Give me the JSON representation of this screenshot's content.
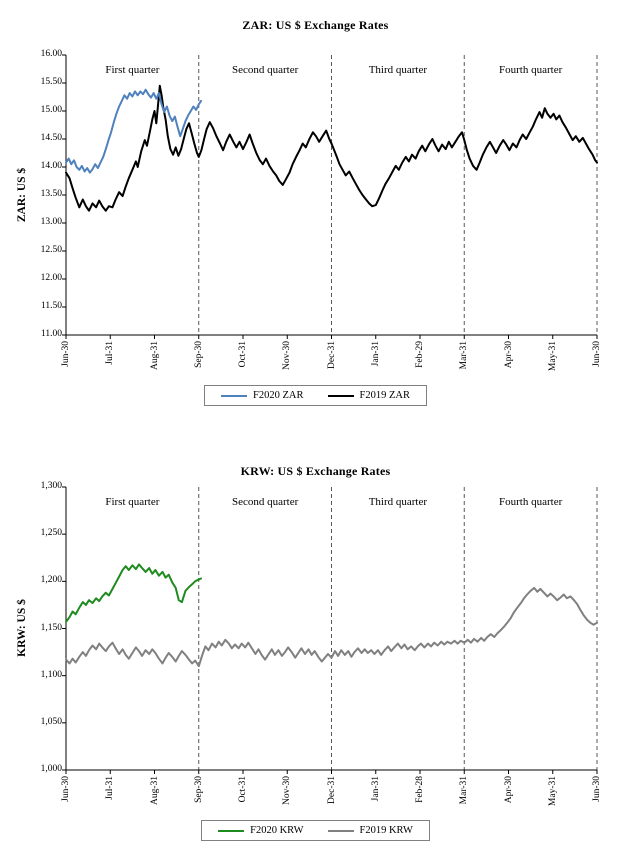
{
  "chart_data": [
    {
      "type": "line",
      "title": "ZAR: US $ Exchange Rates",
      "ylabel": "ZAR: US $",
      "xlabel": "",
      "ylim": [
        11.0,
        16.0
      ],
      "x_range": [
        0,
        12
      ],
      "grid": false,
      "legend_position": "bottom",
      "y_tick_labels": [
        "16.00",
        "15.50",
        "15.00",
        "14.50",
        "14.00",
        "13.50",
        "13.00",
        "12.50",
        "12.00",
        "11.50",
        "11.00"
      ],
      "x_tick_labels": [
        "Jun-30",
        "Jul-31",
        "Aug-31",
        "Sep-30",
        "Oct-31",
        "Nov-30",
        "Dec-31",
        "Jan-31",
        "Feb-29",
        "Mar-31",
        "Apr-30",
        "May-31",
        "Jun-30"
      ],
      "annotations": [
        "First quarter",
        "Second quarter",
        "Third quarter",
        "Fourth quarter"
      ],
      "quarter_separators_pct": [
        25,
        50,
        75,
        100
      ],
      "series": [
        {
          "name": "F2020 ZAR",
          "color": "#4f81bd",
          "x": [
            0,
            0.06,
            0.12,
            0.18,
            0.24,
            0.3,
            0.36,
            0.42,
            0.48,
            0.54,
            0.6,
            0.66,
            0.72,
            0.78,
            0.84,
            0.9,
            0.96,
            1.02,
            1.08,
            1.14,
            1.2,
            1.26,
            1.32,
            1.38,
            1.44,
            1.5,
            1.56,
            1.62,
            1.68,
            1.74,
            1.8,
            1.86,
            1.92,
            1.98,
            2.04,
            2.1,
            2.16,
            2.22,
            2.28,
            2.34,
            2.4,
            2.46,
            2.52,
            2.58,
            2.64,
            2.7,
            2.76,
            2.82,
            2.88,
            2.94,
            3.0,
            3.05
          ],
          "y": [
            14.08,
            14.15,
            14.05,
            14.12,
            14.0,
            13.95,
            14.02,
            13.92,
            13.98,
            13.9,
            13.96,
            14.05,
            13.98,
            14.08,
            14.18,
            14.32,
            14.48,
            14.62,
            14.8,
            14.95,
            15.08,
            15.18,
            15.28,
            15.22,
            15.32,
            15.26,
            15.35,
            15.28,
            15.35,
            15.3,
            15.38,
            15.3,
            15.24,
            15.32,
            15.22,
            15.32,
            15.12,
            14.98,
            15.08,
            14.92,
            14.82,
            14.9,
            14.72,
            14.55,
            14.68,
            14.82,
            14.92,
            15.0,
            15.08,
            15.02,
            15.12,
            15.18
          ]
        },
        {
          "name": "F2019 ZAR",
          "color": "#000000",
          "x": [
            0,
            0.08,
            0.15,
            0.22,
            0.3,
            0.38,
            0.45,
            0.52,
            0.6,
            0.68,
            0.75,
            0.82,
            0.9,
            0.97,
            1.05,
            1.12,
            1.2,
            1.28,
            1.35,
            1.42,
            1.5,
            1.58,
            1.62,
            1.7,
            1.78,
            1.83,
            1.9,
            1.95,
            2.0,
            2.04,
            2.08,
            2.12,
            2.16,
            2.2,
            2.25,
            2.3,
            2.36,
            2.42,
            2.48,
            2.54,
            2.6,
            2.66,
            2.72,
            2.78,
            2.84,
            2.9,
            2.96,
            3.0,
            3.06,
            3.12,
            3.18,
            3.25,
            3.32,
            3.4,
            3.48,
            3.55,
            3.62,
            3.7,
            3.78,
            3.85,
            3.92,
            4.0,
            4.08,
            4.15,
            4.22,
            4.3,
            4.38,
            4.45,
            4.52,
            4.6,
            4.68,
            4.75,
            4.82,
            4.9,
            4.97,
            5.05,
            5.12,
            5.2,
            5.28,
            5.35,
            5.42,
            5.5,
            5.58,
            5.65,
            5.72,
            5.8,
            5.88,
            5.95,
            6.0,
            6.06,
            6.12,
            6.18,
            6.25,
            6.32,
            6.4,
            6.48,
            6.55,
            6.62,
            6.7,
            6.78,
            6.85,
            6.92,
            7.0,
            7.08,
            7.15,
            7.22,
            7.3,
            7.38,
            7.45,
            7.52,
            7.6,
            7.68,
            7.75,
            7.82,
            7.9,
            7.97,
            8.05,
            8.12,
            8.2,
            8.28,
            8.35,
            8.42,
            8.5,
            8.58,
            8.65,
            8.72,
            8.8,
            8.88,
            8.95,
            9.0,
            9.06,
            9.12,
            9.2,
            9.28,
            9.35,
            9.42,
            9.5,
            9.58,
            9.65,
            9.72,
            9.8,
            9.88,
            9.95,
            10.02,
            10.1,
            10.18,
            10.25,
            10.32,
            10.4,
            10.48,
            10.55,
            10.62,
            10.7,
            10.76,
            10.82,
            10.88,
            10.95,
            11.02,
            11.08,
            11.15,
            11.22,
            11.3,
            11.38,
            11.45,
            11.52,
            11.6,
            11.68,
            11.75,
            11.82,
            11.9,
            11.96,
            12.0
          ],
          "y": [
            13.9,
            13.8,
            13.62,
            13.45,
            13.28,
            13.42,
            13.3,
            13.22,
            13.35,
            13.28,
            13.4,
            13.3,
            13.22,
            13.3,
            13.28,
            13.42,
            13.55,
            13.48,
            13.65,
            13.8,
            13.95,
            14.1,
            14.0,
            14.28,
            14.48,
            14.38,
            14.65,
            14.85,
            15.0,
            14.78,
            15.1,
            15.45,
            15.28,
            15.05,
            14.85,
            14.55,
            14.32,
            14.22,
            14.35,
            14.2,
            14.32,
            14.5,
            14.68,
            14.78,
            14.6,
            14.42,
            14.25,
            14.18,
            14.3,
            14.5,
            14.68,
            14.8,
            14.7,
            14.55,
            14.42,
            14.3,
            14.45,
            14.58,
            14.45,
            14.35,
            14.45,
            14.32,
            14.45,
            14.58,
            14.42,
            14.25,
            14.12,
            14.05,
            14.15,
            14.02,
            13.92,
            13.85,
            13.75,
            13.68,
            13.78,
            13.9,
            14.05,
            14.18,
            14.3,
            14.42,
            14.35,
            14.5,
            14.62,
            14.55,
            14.45,
            14.55,
            14.65,
            14.5,
            14.42,
            14.3,
            14.18,
            14.05,
            13.95,
            13.85,
            13.92,
            13.8,
            13.7,
            13.6,
            13.5,
            13.42,
            13.35,
            13.3,
            13.32,
            13.45,
            13.58,
            13.7,
            13.8,
            13.92,
            14.02,
            13.95,
            14.08,
            14.18,
            14.1,
            14.22,
            14.15,
            14.28,
            14.38,
            14.28,
            14.4,
            14.5,
            14.38,
            14.28,
            14.4,
            14.32,
            14.45,
            14.35,
            14.45,
            14.55,
            14.62,
            14.48,
            14.3,
            14.15,
            14.02,
            13.95,
            14.08,
            14.22,
            14.35,
            14.45,
            14.35,
            14.25,
            14.38,
            14.48,
            14.4,
            14.3,
            14.42,
            14.35,
            14.48,
            14.58,
            14.5,
            14.62,
            14.72,
            14.85,
            14.98,
            14.88,
            15.05,
            14.95,
            14.88,
            14.95,
            14.85,
            14.92,
            14.8,
            14.7,
            14.58,
            14.48,
            14.55,
            14.45,
            14.52,
            14.42,
            14.32,
            14.22,
            14.12,
            14.08
          ]
        }
      ]
    },
    {
      "type": "line",
      "title": "KRW: US $ Exchange Rates",
      "ylabel": "KRW: US $",
      "xlabel": "",
      "ylim": [
        1000,
        1300
      ],
      "x_range": [
        0,
        12
      ],
      "grid": false,
      "legend_position": "bottom",
      "y_tick_labels": [
        "1,300",
        "1,250",
        "1,200",
        "1,150",
        "1,100",
        "1,050",
        "1,000"
      ],
      "x_tick_labels": [
        "Jun-30",
        "Jul-31",
        "Aug-31",
        "Sep-30",
        "Oct-31",
        "Nov-30",
        "Dec-31",
        "Jan-31",
        "Feb-28",
        "Mar-31",
        "Apr-30",
        "May-31",
        "Jun-30"
      ],
      "annotations": [
        "First quarter",
        "Second quarter",
        "Third quarter",
        "Fourth quarter"
      ],
      "quarter_separators_pct": [
        25,
        50,
        75,
        100
      ],
      "series": [
        {
          "name": "F2020 KRW",
          "color": "#1e8b1e",
          "x": [
            0,
            0.08,
            0.15,
            0.22,
            0.3,
            0.38,
            0.45,
            0.52,
            0.6,
            0.68,
            0.75,
            0.82,
            0.9,
            0.97,
            1.05,
            1.12,
            1.2,
            1.28,
            1.35,
            1.42,
            1.5,
            1.58,
            1.65,
            1.72,
            1.8,
            1.88,
            1.95,
            2.02,
            2.1,
            2.18,
            2.25,
            2.32,
            2.4,
            2.48,
            2.55,
            2.62,
            2.7,
            2.78,
            2.85,
            2.92,
            3.0,
            3.05
          ],
          "y": [
            1157,
            1162,
            1168,
            1165,
            1172,
            1178,
            1175,
            1180,
            1177,
            1182,
            1179,
            1184,
            1188,
            1185,
            1192,
            1198,
            1205,
            1212,
            1216,
            1212,
            1217,
            1213,
            1218,
            1214,
            1210,
            1214,
            1208,
            1212,
            1206,
            1210,
            1204,
            1207,
            1199,
            1193,
            1180,
            1178,
            1190,
            1194,
            1197,
            1200,
            1202,
            1203
          ]
        },
        {
          "name": "F2019 KRW",
          "color": "#808080",
          "x": [
            0,
            0.08,
            0.15,
            0.22,
            0.3,
            0.38,
            0.45,
            0.52,
            0.6,
            0.68,
            0.75,
            0.82,
            0.9,
            0.97,
            1.05,
            1.12,
            1.2,
            1.28,
            1.35,
            1.42,
            1.5,
            1.58,
            1.65,
            1.72,
            1.8,
            1.88,
            1.95,
            2.02,
            2.1,
            2.18,
            2.25,
            2.32,
            2.4,
            2.48,
            2.55,
            2.62,
            2.7,
            2.78,
            2.85,
            2.92,
            3.0,
            3.08,
            3.15,
            3.22,
            3.3,
            3.38,
            3.45,
            3.52,
            3.6,
            3.68,
            3.75,
            3.82,
            3.9,
            3.97,
            4.05,
            4.12,
            4.2,
            4.28,
            4.35,
            4.42,
            4.5,
            4.58,
            4.65,
            4.72,
            4.8,
            4.88,
            4.95,
            5.02,
            5.1,
            5.18,
            5.25,
            5.32,
            5.4,
            5.48,
            5.55,
            5.62,
            5.7,
            5.78,
            5.85,
            5.92,
            6.0,
            6.08,
            6.15,
            6.22,
            6.3,
            6.38,
            6.45,
            6.52,
            6.6,
            6.68,
            6.75,
            6.82,
            6.9,
            6.97,
            7.05,
            7.12,
            7.2,
            7.28,
            7.35,
            7.42,
            7.5,
            7.58,
            7.65,
            7.72,
            7.8,
            7.88,
            7.95,
            8.02,
            8.1,
            8.18,
            8.25,
            8.32,
            8.4,
            8.48,
            8.55,
            8.62,
            8.7,
            8.78,
            8.85,
            8.92,
            9.0,
            9.08,
            9.15,
            9.22,
            9.3,
            9.38,
            9.45,
            9.52,
            9.6,
            9.68,
            9.75,
            9.82,
            9.9,
            9.97,
            10.05,
            10.12,
            10.2,
            10.28,
            10.35,
            10.42,
            10.5,
            10.58,
            10.65,
            10.72,
            10.8,
            10.88,
            10.95,
            11.02,
            11.1,
            11.18,
            11.25,
            11.32,
            11.4,
            11.48,
            11.55,
            11.62,
            11.7,
            11.78,
            11.85,
            11.92,
            12.0
          ],
          "y": [
            1117,
            1113,
            1118,
            1114,
            1120,
            1125,
            1121,
            1127,
            1132,
            1128,
            1134,
            1130,
            1126,
            1131,
            1135,
            1129,
            1123,
            1128,
            1122,
            1118,
            1124,
            1130,
            1126,
            1121,
            1127,
            1123,
            1128,
            1124,
            1118,
            1113,
            1119,
            1124,
            1120,
            1115,
            1121,
            1126,
            1122,
            1117,
            1113,
            1116,
            1110,
            1122,
            1131,
            1127,
            1134,
            1130,
            1136,
            1132,
            1138,
            1134,
            1129,
            1133,
            1129,
            1134,
            1130,
            1135,
            1129,
            1123,
            1128,
            1122,
            1117,
            1123,
            1128,
            1122,
            1127,
            1121,
            1125,
            1130,
            1125,
            1119,
            1124,
            1129,
            1123,
            1128,
            1122,
            1126,
            1120,
            1115,
            1119,
            1123,
            1119,
            1126,
            1121,
            1127,
            1122,
            1126,
            1120,
            1125,
            1129,
            1124,
            1128,
            1124,
            1127,
            1123,
            1127,
            1122,
            1127,
            1131,
            1126,
            1130,
            1134,
            1129,
            1133,
            1128,
            1131,
            1127,
            1131,
            1134,
            1130,
            1134,
            1131,
            1135,
            1132,
            1136,
            1133,
            1136,
            1134,
            1137,
            1134,
            1137,
            1135,
            1138,
            1135,
            1139,
            1136,
            1140,
            1137,
            1141,
            1144,
            1141,
            1145,
            1148,
            1152,
            1156,
            1161,
            1167,
            1172,
            1177,
            1182,
            1186,
            1190,
            1193,
            1189,
            1192,
            1188,
            1184,
            1187,
            1184,
            1180,
            1183,
            1186,
            1182,
            1184,
            1180,
            1176,
            1170,
            1164,
            1159,
            1156,
            1154,
            1156
          ]
        }
      ]
    }
  ]
}
